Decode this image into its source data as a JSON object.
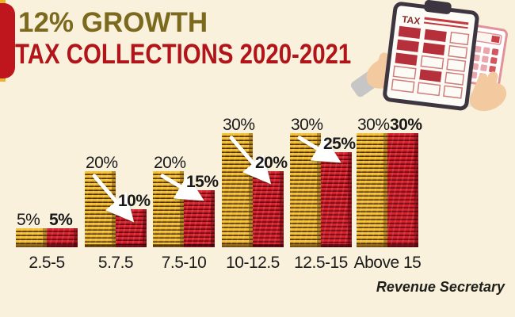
{
  "page": {
    "background": "#faf1dd"
  },
  "header": {
    "title_line1": "12% GROWTH",
    "title_line2": "TAX COLLECTIONS 2020-2021",
    "title1_color": "#7b6a1e",
    "title2_color": "#b11419"
  },
  "footer": {
    "credit": "Revenue Secretary"
  },
  "illustration": {
    "name": "tax-clipboard-and-calculator",
    "clipboard_label": "TAX"
  },
  "colors": {
    "background": "#faf1dd",
    "accent_yellow": "#e9b32a",
    "accent_red": "#be161c",
    "bar_yellow": "#efbc2d",
    "bar_yellow_stripe": "#4e2e07",
    "bar_red": "#da2530",
    "bar_red_stripe": "#6d070f",
    "label_text": "#191919",
    "arrow": "#ffffff"
  },
  "chart_data": {
    "type": "bar",
    "title": "TAX COLLECTIONS 2020-2021",
    "subtitle": "12% GROWTH",
    "categories": [
      "2.5-5",
      "5.7.5",
      "7.5-10",
      "10-12.5",
      "12.5-15",
      "Above 15"
    ],
    "series": [
      {
        "name": "yellow-bar-previous-rate",
        "values": [
          5,
          20,
          20,
          30,
          30,
          30
        ]
      },
      {
        "name": "red-bar-new-rate",
        "values": [
          5,
          10,
          15,
          20,
          25,
          30
        ]
      }
    ],
    "value_suffix": "%",
    "arrows_between": [
      false,
      true,
      true,
      true,
      true,
      false
    ],
    "ylim": [
      0,
      32
    ],
    "grid": false,
    "axes_visible": false,
    "legend": "none"
  }
}
